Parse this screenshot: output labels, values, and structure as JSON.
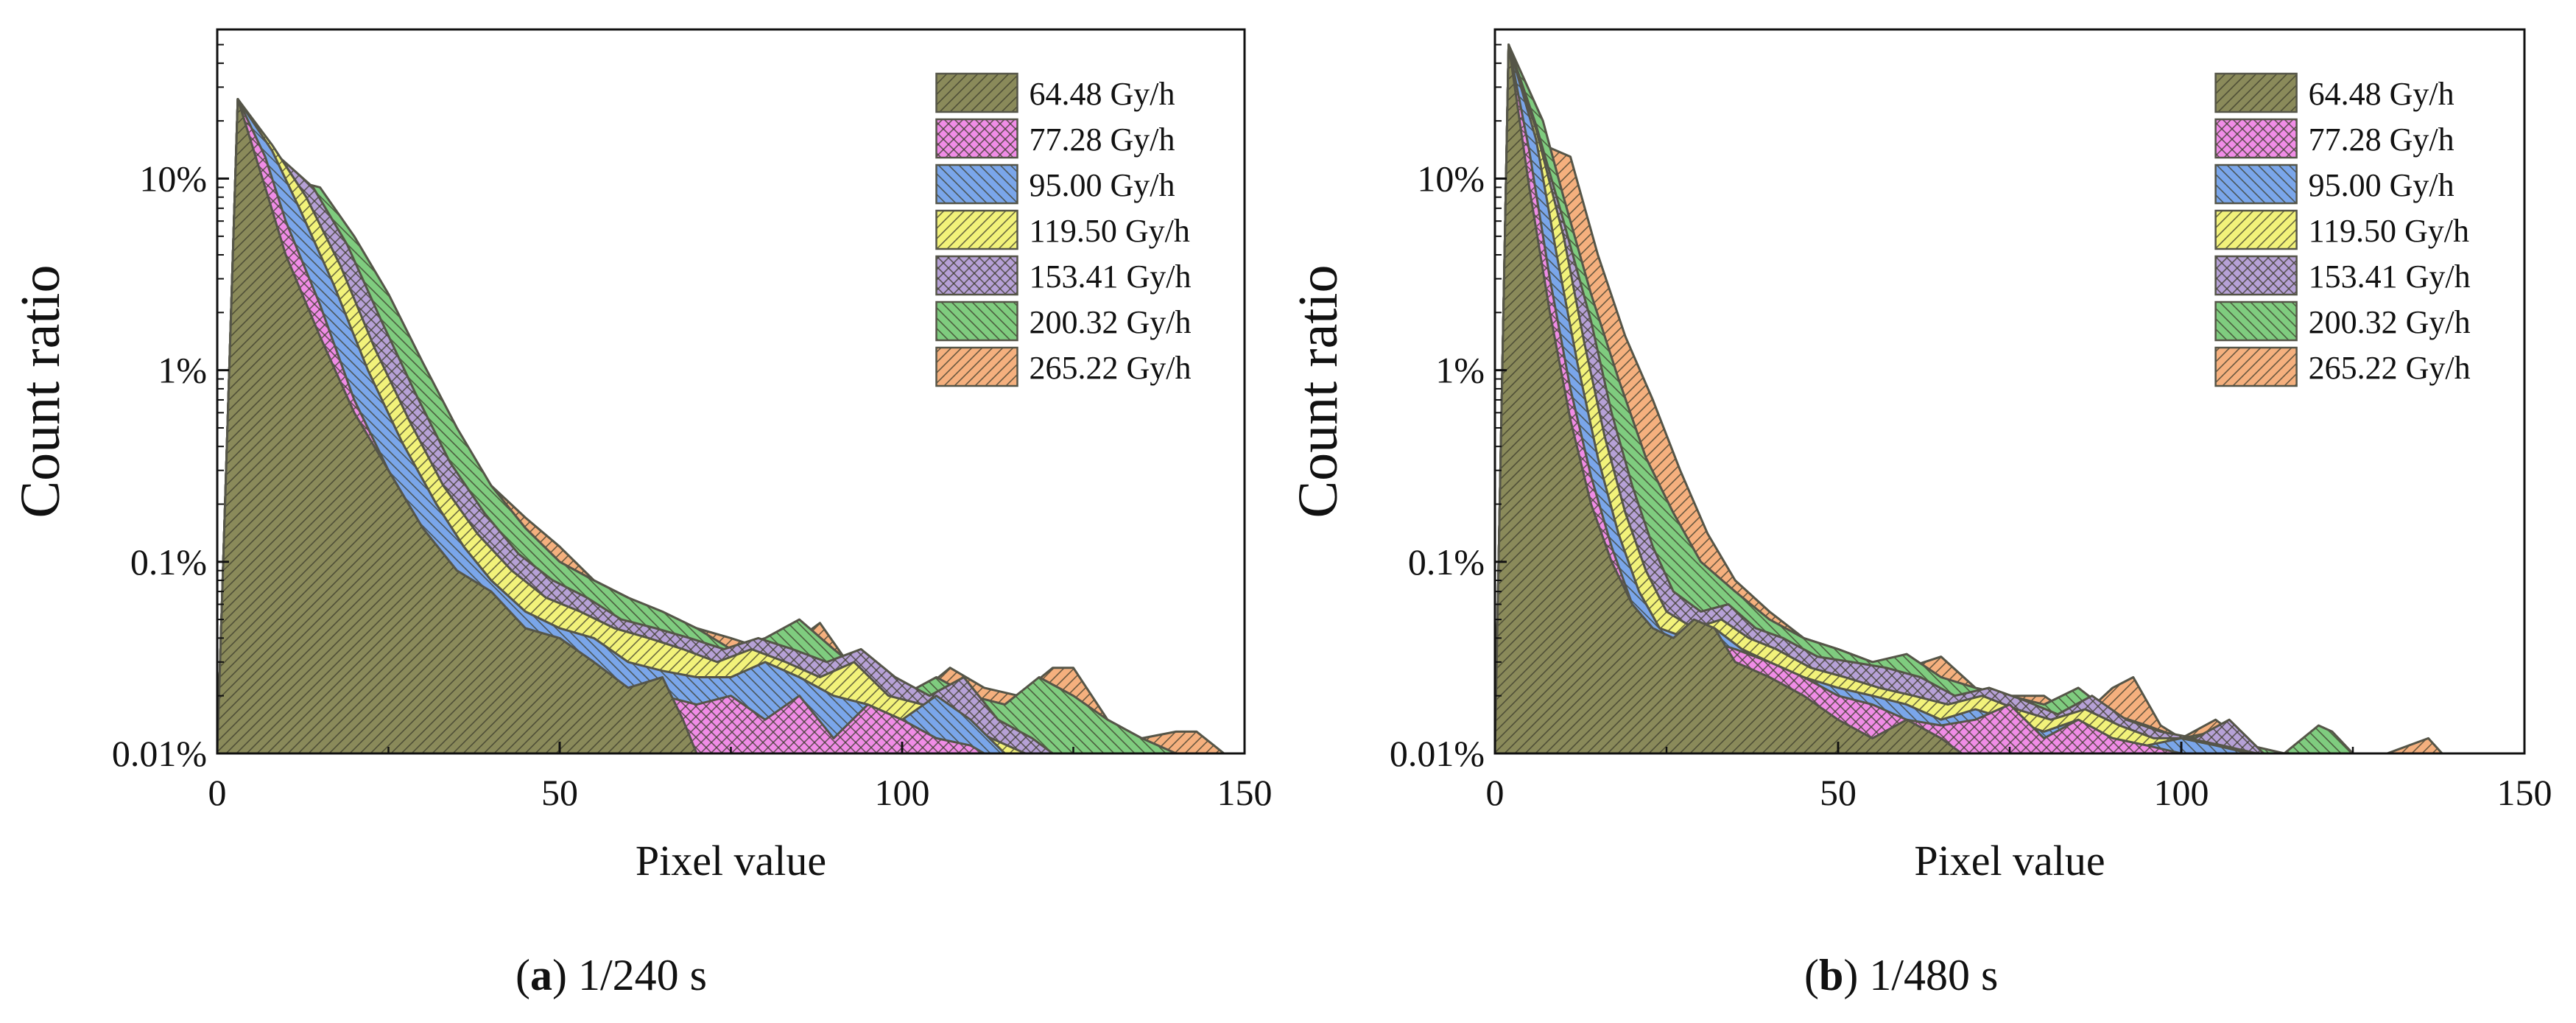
{
  "figure": {
    "panels": [
      {
        "label": "a",
        "caption": "1/240 s"
      },
      {
        "label": "b",
        "caption": "1/480 s"
      }
    ]
  },
  "series_meta": [
    {
      "name": "64.48 Gy/h",
      "color": "#8a8a5a",
      "pattern": "diag-right"
    },
    {
      "name": "77.28 Gy/h",
      "color": "#f08ce6",
      "pattern": "cross-hatch"
    },
    {
      "name": "95.00 Gy/h",
      "color": "#7aa6ea",
      "pattern": "diag-left"
    },
    {
      "name": "119.50 Gy/h",
      "color": "#f2f27a",
      "pattern": "diag-right"
    },
    {
      "name": "153.41 Gy/h",
      "color": "#b6a1d6",
      "pattern": "cross-hatch"
    },
    {
      "name": "200.32 Gy/h",
      "color": "#7fcc7f",
      "pattern": "diag-left"
    },
    {
      "name": "265.22 Gy/h",
      "color": "#f5b07e",
      "pattern": "diag-right"
    }
  ],
  "chart_data": [
    {
      "type": "area",
      "title": "",
      "xlabel": "Pixel value",
      "ylabel": "Count ratio",
      "xlim": [
        0,
        150
      ],
      "ylim": [
        0.01,
        60
      ],
      "yscale": "log",
      "xticks": [
        0,
        50,
        100,
        150
      ],
      "yticks": [
        {
          "value": 0.01,
          "label": "0.01%"
        },
        {
          "value": 0.1,
          "label": "0.1%"
        },
        {
          "value": 1,
          "label": "1%"
        },
        {
          "value": 10,
          "label": "10%"
        }
      ],
      "legend_position": "top-right",
      "series": [
        {
          "name": "64.48 Gy/h",
          "x": [
            0,
            3,
            7,
            10,
            15,
            20,
            25,
            30,
            35,
            40,
            45,
            50,
            55,
            60,
            65,
            68,
            70
          ],
          "y": [
            0.01,
            26,
            9,
            4,
            1.5,
            0.6,
            0.3,
            0.15,
            0.09,
            0.07,
            0.045,
            0.04,
            0.03,
            0.022,
            0.025,
            0.015,
            0.01
          ]
        },
        {
          "name": "77.28 Gy/h",
          "x": [
            0,
            3,
            7,
            10,
            15,
            20,
            25,
            30,
            33,
            36,
            40,
            45,
            50,
            55,
            60,
            65,
            70,
            75,
            80,
            85,
            90,
            95,
            100,
            105,
            110,
            112
          ],
          "y": [
            0.01,
            26,
            13,
            6,
            2.2,
            0.7,
            0.3,
            0.15,
            0.1,
            0.07,
            0.05,
            0.04,
            0.035,
            0.025,
            0.022,
            0.02,
            0.018,
            0.02,
            0.015,
            0.02,
            0.012,
            0.018,
            0.015,
            0.012,
            0.011,
            0.01
          ]
        },
        {
          "name": "95.00 Gy/h",
          "x": [
            0,
            3,
            8,
            12,
            17,
            22,
            27,
            32,
            36,
            40,
            45,
            50,
            55,
            60,
            65,
            70,
            75,
            80,
            85,
            90,
            95,
            100,
            105,
            110,
            115
          ],
          "y": [
            0.01,
            26,
            14,
            7,
            2.8,
            1,
            0.42,
            0.2,
            0.12,
            0.08,
            0.055,
            0.045,
            0.04,
            0.03,
            0.027,
            0.025,
            0.025,
            0.03,
            0.025,
            0.02,
            0.018,
            0.015,
            0.02,
            0.015,
            0.01
          ]
        },
        {
          "name": "119.50 Gy/h",
          "x": [
            0,
            3,
            8,
            13,
            18,
            23,
            28,
            33,
            38,
            43,
            48,
            53,
            58,
            63,
            68,
            73,
            78,
            83,
            88,
            93,
            98,
            103,
            108,
            113,
            118
          ],
          "y": [
            0.01,
            26,
            15,
            8,
            3.5,
            1.3,
            0.55,
            0.25,
            0.14,
            0.09,
            0.065,
            0.055,
            0.045,
            0.04,
            0.035,
            0.03,
            0.035,
            0.03,
            0.025,
            0.03,
            0.02,
            0.018,
            0.015,
            0.012,
            0.01
          ]
        },
        {
          "name": "153.41 Gy/h",
          "x": [
            0,
            3,
            9,
            14,
            19,
            24,
            29,
            34,
            39,
            44,
            49,
            54,
            59,
            64,
            69,
            74,
            79,
            84,
            89,
            94,
            99,
            104,
            109,
            114,
            119,
            122
          ],
          "y": [
            0.01,
            26,
            13,
            9,
            4.5,
            1.8,
            0.75,
            0.33,
            0.18,
            0.11,
            0.08,
            0.065,
            0.05,
            0.045,
            0.04,
            0.035,
            0.04,
            0.035,
            0.03,
            0.035,
            0.025,
            0.02,
            0.025,
            0.015,
            0.012,
            0.01
          ]
        },
        {
          "name": "200.32 Gy/h",
          "x": [
            0,
            3,
            10,
            15,
            20,
            25,
            30,
            35,
            40,
            45,
            50,
            55,
            60,
            65,
            70,
            75,
            80,
            85,
            90,
            95,
            100,
            105,
            110,
            115,
            120,
            125,
            130,
            135,
            140
          ],
          "y": [
            0.01,
            26,
            10,
            9,
            5,
            2.5,
            1.1,
            0.5,
            0.25,
            0.15,
            0.1,
            0.08,
            0.065,
            0.055,
            0.045,
            0.035,
            0.04,
            0.05,
            0.035,
            0.025,
            0.02,
            0.025,
            0.02,
            0.018,
            0.025,
            0.02,
            0.015,
            0.012,
            0.01
          ]
        },
        {
          "name": "265.22 Gy/h",
          "x": [
            0,
            3,
            10,
            15,
            20,
            25,
            30,
            35,
            40,
            45,
            50,
            55,
            60,
            65,
            70,
            75,
            80,
            85,
            88,
            92,
            97,
            102,
            107,
            112,
            117,
            122,
            125,
            130,
            135,
            140,
            143,
            147
          ],
          "y": [
            0.01,
            26,
            8,
            7.5,
            4,
            2,
            0.95,
            0.45,
            0.25,
            0.17,
            0.12,
            0.08,
            0.065,
            0.05,
            0.045,
            0.04,
            0.035,
            0.04,
            0.048,
            0.03,
            0.022,
            0.02,
            0.028,
            0.022,
            0.02,
            0.028,
            0.028,
            0.015,
            0.012,
            0.013,
            0.013,
            0.01
          ]
        }
      ]
    },
    {
      "type": "area",
      "title": "",
      "xlabel": "Pixel value",
      "ylabel": "Count ratio",
      "xlim": [
        0,
        150
      ],
      "ylim": [
        0.01,
        60
      ],
      "yscale": "log",
      "xticks": [
        0,
        50,
        100,
        150
      ],
      "yticks": [
        {
          "value": 0.01,
          "label": "0.01%"
        },
        {
          "value": 0.1,
          "label": "0.1%"
        },
        {
          "value": 1,
          "label": "1%"
        },
        {
          "value": 10,
          "label": "10%"
        }
      ],
      "legend_position": "top-right",
      "series": [
        {
          "name": "64.48 Gy/h",
          "x": [
            0,
            2,
            5,
            8,
            11,
            14,
            17,
            20,
            23,
            26,
            29,
            32,
            35,
            40,
            45,
            50,
            55,
            60,
            65,
            68
          ],
          "y": [
            0.01,
            50,
            9,
            2,
            0.55,
            0.2,
            0.1,
            0.06,
            0.045,
            0.04,
            0.05,
            0.045,
            0.03,
            0.025,
            0.02,
            0.015,
            0.012,
            0.015,
            0.012,
            0.01
          ]
        },
        {
          "name": "77.28 Gy/h",
          "x": [
            0,
            2,
            5,
            8,
            11,
            14,
            17,
            20,
            23,
            26,
            30,
            35,
            40,
            45,
            50,
            55,
            60,
            65,
            70,
            75,
            80,
            85,
            90,
            95,
            100
          ],
          "y": [
            0.01,
            50,
            14,
            3,
            0.8,
            0.28,
            0.12,
            0.06,
            0.04,
            0.035,
            0.04,
            0.035,
            0.03,
            0.025,
            0.02,
            0.018,
            0.015,
            0.014,
            0.015,
            0.018,
            0.012,
            0.015,
            0.012,
            0.011,
            0.01
          ]
        },
        {
          "name": "95.00 Gy/h",
          "x": [
            0,
            2,
            6,
            9,
            12,
            15,
            18,
            21,
            24,
            28,
            32,
            36,
            40,
            45,
            50,
            55,
            60,
            65,
            70,
            75,
            80,
            85,
            90,
            95,
            100,
            105,
            110
          ],
          "y": [
            0.01,
            50,
            16,
            4,
            1.1,
            0.35,
            0.14,
            0.07,
            0.045,
            0.04,
            0.045,
            0.035,
            0.03,
            0.025,
            0.022,
            0.02,
            0.018,
            0.015,
            0.017,
            0.015,
            0.013,
            0.015,
            0.012,
            0.011,
            0.012,
            0.011,
            0.01
          ]
        },
        {
          "name": "119.50 Gy/h",
          "x": [
            0,
            2,
            6,
            10,
            13,
            16,
            19,
            22,
            25,
            29,
            33,
            37,
            41,
            46,
            51,
            56,
            61,
            66,
            71,
            76,
            81,
            86,
            91,
            96,
            101,
            106,
            111
          ],
          "y": [
            0.01,
            50,
            18,
            5,
            1.4,
            0.45,
            0.18,
            0.09,
            0.055,
            0.045,
            0.05,
            0.04,
            0.035,
            0.028,
            0.025,
            0.022,
            0.02,
            0.018,
            0.02,
            0.017,
            0.015,
            0.017,
            0.014,
            0.012,
            0.012,
            0.011,
            0.01
          ]
        },
        {
          "name": "153.41 Gy/h",
          "x": [
            0,
            2,
            6,
            10,
            14,
            17,
            20,
            23,
            26,
            30,
            34,
            38,
            42,
            47,
            52,
            57,
            62,
            67,
            72,
            77,
            82,
            87,
            92,
            97,
            102,
            107,
            112
          ],
          "y": [
            0.01,
            50,
            19,
            6,
            1.8,
            0.6,
            0.25,
            0.12,
            0.07,
            0.055,
            0.06,
            0.045,
            0.04,
            0.032,
            0.03,
            0.028,
            0.025,
            0.02,
            0.022,
            0.019,
            0.016,
            0.02,
            0.015,
            0.013,
            0.012,
            0.015,
            0.01
          ]
        },
        {
          "name": "200.32 Gy/h",
          "x": [
            0,
            2,
            7,
            10,
            14,
            18,
            22,
            26,
            30,
            35,
            40,
            45,
            50,
            55,
            60,
            65,
            70,
            75,
            80,
            85,
            90,
            95,
            100,
            105,
            110,
            115,
            120,
            122,
            125
          ],
          "y": [
            0.01,
            50,
            20,
            8,
            2.5,
            0.9,
            0.35,
            0.18,
            0.1,
            0.07,
            0.05,
            0.04,
            0.035,
            0.03,
            0.033,
            0.025,
            0.022,
            0.02,
            0.018,
            0.022,
            0.016,
            0.014,
            0.012,
            0.013,
            0.011,
            0.01,
            0.014,
            0.013,
            0.01
          ]
        },
        {
          "name": "265.22 Gy/h",
          "x": [
            0,
            2,
            7,
            11,
            15,
            19,
            23,
            27,
            31,
            35,
            40,
            45,
            50,
            55,
            60,
            65,
            70,
            75,
            80,
            85,
            90,
            93,
            97,
            100,
            105,
            110,
            115,
            120,
            125,
            130,
            136,
            138
          ],
          "y": [
            0.01,
            50,
            15,
            13,
            4,
            1.5,
            0.7,
            0.3,
            0.14,
            0.08,
            0.055,
            0.04,
            0.035,
            0.03,
            0.028,
            0.032,
            0.022,
            0.02,
            0.02,
            0.015,
            0.022,
            0.025,
            0.014,
            0.012,
            0.015,
            0.011,
            0.01,
            0.01,
            0.01,
            0.01,
            0.012,
            0.01
          ]
        }
      ]
    }
  ]
}
